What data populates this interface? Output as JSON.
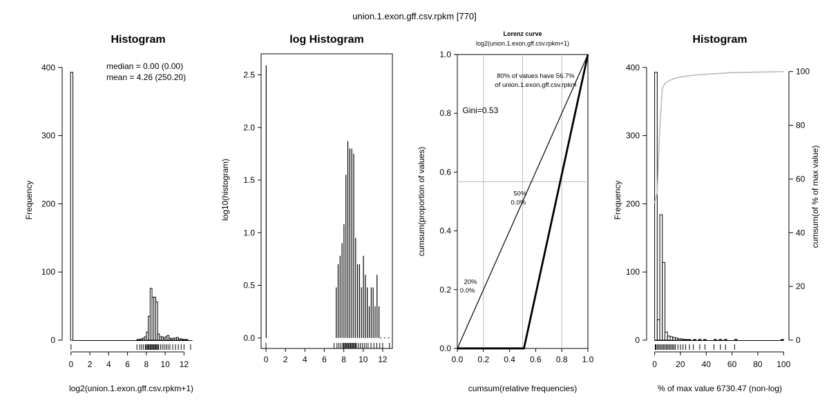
{
  "page_title": "union.1.exon.gff.csv.rpkm [770]",
  "chart_data": [
    {
      "type": "bar",
      "title": "Histogram",
      "xlabel": "log2(union.1.exon.gff.csv.rpkm+1)",
      "ylabel": "Frequency",
      "xlim": [
        -0.5,
        13
      ],
      "ylim": [
        0,
        420
      ],
      "x_ticks": [
        "0",
        "2",
        "4",
        "6",
        "8",
        "10",
        "12"
      ],
      "y_ticks": [
        "0",
        "100",
        "200",
        "300",
        "400"
      ],
      "annotations": [
        "median = 0.00 (0.00)",
        "mean = 4.26 (250.20)"
      ],
      "bins": [
        {
          "x": 0.0,
          "v": 393
        },
        {
          "x": 7.0,
          "v": 1
        },
        {
          "x": 7.2,
          "v": 1
        },
        {
          "x": 7.4,
          "v": 2
        },
        {
          "x": 7.6,
          "v": 3
        },
        {
          "x": 7.8,
          "v": 5
        },
        {
          "x": 8.0,
          "v": 12
        },
        {
          "x": 8.2,
          "v": 35
        },
        {
          "x": 8.4,
          "v": 76
        },
        {
          "x": 8.6,
          "v": 63
        },
        {
          "x": 8.8,
          "v": 63
        },
        {
          "x": 9.0,
          "v": 56
        },
        {
          "x": 9.2,
          "v": 9
        },
        {
          "x": 9.4,
          "v": 5
        },
        {
          "x": 9.6,
          "v": 5
        },
        {
          "x": 9.8,
          "v": 3
        },
        {
          "x": 10.0,
          "v": 5
        },
        {
          "x": 10.2,
          "v": 7
        },
        {
          "x": 10.4,
          "v": 3
        },
        {
          "x": 10.6,
          "v": 2
        },
        {
          "x": 10.8,
          "v": 3
        },
        {
          "x": 11.0,
          "v": 3
        },
        {
          "x": 11.2,
          "v": 4
        },
        {
          "x": 11.4,
          "v": 2
        },
        {
          "x": 11.6,
          "v": 2
        },
        {
          "x": 11.8,
          "v": 1
        },
        {
          "x": 12.0,
          "v": 1
        },
        {
          "x": 12.2,
          "v": 1
        }
      ],
      "bin_width": 0.2,
      "rug": [
        0.0,
        7.0,
        7.3,
        7.5,
        7.7,
        7.9,
        8.0,
        8.1,
        8.2,
        8.3,
        8.4,
        8.5,
        8.6,
        8.7,
        8.8,
        8.9,
        9.0,
        9.1,
        9.2,
        9.3,
        9.5,
        9.7,
        9.9,
        10.1,
        10.3,
        10.5,
        10.8,
        11.1,
        11.4,
        11.7,
        12.0,
        12.7
      ]
    },
    {
      "type": "bar",
      "title": "log Histogram",
      "xlabel": "",
      "ylabel": "log10(histogram)",
      "xlim": [
        -0.5,
        13
      ],
      "ylim": [
        -0.1,
        2.7
      ],
      "x_ticks": [
        "0",
        "2",
        "4",
        "6",
        "8",
        "10",
        "12"
      ],
      "y_ticks": [
        "0.0",
        "0.5",
        "1.0",
        "1.5",
        "2.0",
        "2.5"
      ],
      "bars": [
        {
          "x": 0.0,
          "v": 2.59
        },
        {
          "x": 7.2,
          "v": 0.48
        },
        {
          "x": 7.4,
          "v": 0.7
        },
        {
          "x": 7.6,
          "v": 0.78
        },
        {
          "x": 7.8,
          "v": 0.9
        },
        {
          "x": 8.0,
          "v": 1.08
        },
        {
          "x": 8.2,
          "v": 1.55
        },
        {
          "x": 8.4,
          "v": 1.87
        },
        {
          "x": 8.6,
          "v": 1.8
        },
        {
          "x": 8.8,
          "v": 1.8
        },
        {
          "x": 9.0,
          "v": 1.75
        },
        {
          "x": 9.2,
          "v": 0.95
        },
        {
          "x": 9.4,
          "v": 0.7
        },
        {
          "x": 9.6,
          "v": 0.7
        },
        {
          "x": 9.8,
          "v": 0.48
        },
        {
          "x": 10.0,
          "v": 0.78
        },
        {
          "x": 10.2,
          "v": 0.6
        },
        {
          "x": 10.4,
          "v": 0.48
        },
        {
          "x": 10.6,
          "v": 0.3
        },
        {
          "x": 10.8,
          "v": 0.48
        },
        {
          "x": 11.0,
          "v": 0.48
        },
        {
          "x": 11.2,
          "v": 0.3
        },
        {
          "x": 11.4,
          "v": 0.6
        },
        {
          "x": 11.6,
          "v": 0.3
        },
        {
          "x": 11.8,
          "v": 0.0
        },
        {
          "x": 12.2,
          "v": 0.0
        },
        {
          "x": 12.6,
          "v": 0.0
        }
      ],
      "rug": [
        0.0,
        7.0,
        7.3,
        7.5,
        7.7,
        7.9,
        8.0,
        8.1,
        8.2,
        8.3,
        8.4,
        8.5,
        8.6,
        8.7,
        8.8,
        8.9,
        9.0,
        9.1,
        9.2,
        9.3,
        9.5,
        9.7,
        9.9,
        10.1,
        10.3,
        10.5,
        10.8,
        11.1,
        11.4,
        11.7,
        12.0,
        12.7
      ]
    },
    {
      "type": "line",
      "title": "Lorenz curve",
      "subtitle": "log2(union.1.exon.gff.csv.rpkm+1)",
      "xlabel": "cumsum(relative frequencies)",
      "ylabel": "cumsum(proportion of values)",
      "xlim": [
        0,
        1
      ],
      "ylim": [
        0,
        1
      ],
      "x_ticks": [
        "0.0",
        "0.2",
        "0.4",
        "0.6",
        "0.8",
        "1.0"
      ],
      "y_ticks": [
        "0.0",
        "0.2",
        "0.4",
        "0.6",
        "0.8",
        "1.0"
      ],
      "gridlines_x": [
        0.2,
        0.5,
        0.8
      ],
      "gridline_y": 0.567,
      "series": [
        {
          "points": [
            [
              0,
              0
            ],
            [
              1,
              1
            ]
          ]
        },
        {
          "points": [
            [
              0,
              0
            ],
            [
              0.51,
              0
            ],
            [
              1,
              1
            ]
          ]
        }
      ],
      "annotations": [
        {
          "text": "80% of values have 56.7%",
          "x": 0.6,
          "y": 0.92
        },
        {
          "text": "of union.1.exon.gff.csv.rpkm",
          "x": 0.6,
          "y": 0.89
        },
        {
          "text": "Gini=0.53",
          "x": 0.04,
          "y": 0.8
        },
        {
          "text": "50%",
          "x": 0.43,
          "y": 0.52
        },
        {
          "text": "0.0%",
          "x": 0.41,
          "y": 0.49
        },
        {
          "text": "20%",
          "x": 0.05,
          "y": 0.22
        },
        {
          "text": "0.0%",
          "x": 0.02,
          "y": 0.19
        }
      ]
    },
    {
      "type": "bar",
      "title": "Histogram",
      "xlabel": "% of max value 6730.47 (non-log)",
      "ylabel": "Frequency",
      "ylabel_right": "cumsum(of % of max value)",
      "xlim": [
        -3,
        102
      ],
      "ylim": [
        0,
        420
      ],
      "x_ticks": [
        "0",
        "20",
        "40",
        "60",
        "80",
        "100"
      ],
      "y_ticks": [
        "0",
        "100",
        "200",
        "300",
        "400"
      ],
      "y2_ticks": [
        "0",
        "20",
        "40",
        "60",
        "80",
        "100"
      ],
      "bin_width": 2,
      "bins": [
        {
          "x": 0,
          "v": 393
        },
        {
          "x": 2,
          "v": 30
        },
        {
          "x": 4,
          "v": 184
        },
        {
          "x": 6,
          "v": 114
        },
        {
          "x": 8,
          "v": 12
        },
        {
          "x": 10,
          "v": 6
        },
        {
          "x": 12,
          "v": 5
        },
        {
          "x": 14,
          "v": 4
        },
        {
          "x": 16,
          "v": 3
        },
        {
          "x": 18,
          "v": 2
        },
        {
          "x": 20,
          "v": 2
        },
        {
          "x": 22,
          "v": 1
        },
        {
          "x": 24,
          "v": 1
        },
        {
          "x": 26,
          "v": 1
        },
        {
          "x": 30,
          "v": 1
        },
        {
          "x": 34,
          "v": 1
        },
        {
          "x": 38,
          "v": 1
        },
        {
          "x": 46,
          "v": 1
        },
        {
          "x": 50,
          "v": 1
        },
        {
          "x": 54,
          "v": 1
        },
        {
          "x": 62,
          "v": 1
        },
        {
          "x": 98,
          "v": 1
        }
      ],
      "cumsum_line": [
        [
          0,
          51
        ],
        [
          2,
          55
        ],
        [
          4,
          79
        ],
        [
          6,
          94
        ],
        [
          8,
          95.5
        ],
        [
          10,
          96.3
        ],
        [
          14,
          97.2
        ],
        [
          20,
          98
        ],
        [
          30,
          98.6
        ],
        [
          40,
          99
        ],
        [
          60,
          99.6
        ],
        [
          100,
          100
        ]
      ],
      "rug": [
        0.5,
        1,
        2,
        3,
        4,
        5,
        6,
        7,
        8,
        9,
        10,
        11,
        12,
        13,
        14,
        15,
        16,
        18,
        20,
        22,
        24,
        27,
        30,
        35,
        39,
        46,
        51,
        55,
        62
      ]
    }
  ]
}
